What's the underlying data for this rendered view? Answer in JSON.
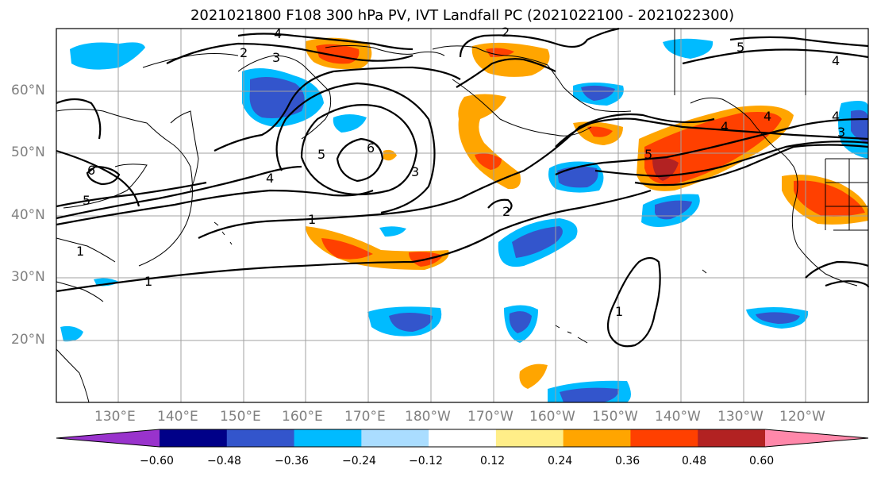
{
  "title": "2021021800 F108 300 hPa PV, IVT Landfall PC (2021022100 - 2021022300)",
  "lat_labels": [
    "60°N",
    "50°N",
    "40°N",
    "30°N",
    "20°N"
  ],
  "lon_labels": [
    "130°E",
    "140°E",
    "150°E",
    "160°E",
    "170°E",
    "180°W",
    "170°W",
    "160°W",
    "150°W",
    "140°W",
    "130°W",
    "120°W"
  ],
  "colorbar": {
    "ticks": [
      "−0.60",
      "−0.48",
      "−0.36",
      "−0.24",
      "−0.12",
      "0.12",
      "0.24",
      "0.36",
      "0.48",
      "0.60"
    ],
    "colors": [
      "#9933cc",
      "#000088",
      "#3355cc",
      "#00bbff",
      "#aaddff",
      "#ffffff",
      "#ffee88",
      "#ffa500",
      "#ff4000",
      "#b22222",
      "#ff88aa"
    ]
  },
  "contour_labels": [
    "2",
    "3",
    "4",
    "5",
    "6",
    "5",
    "4",
    "4",
    "2",
    "4",
    "6",
    "5",
    "1",
    "1",
    "1",
    "2",
    "3",
    "5",
    "4",
    "4",
    "3",
    "1"
  ]
}
